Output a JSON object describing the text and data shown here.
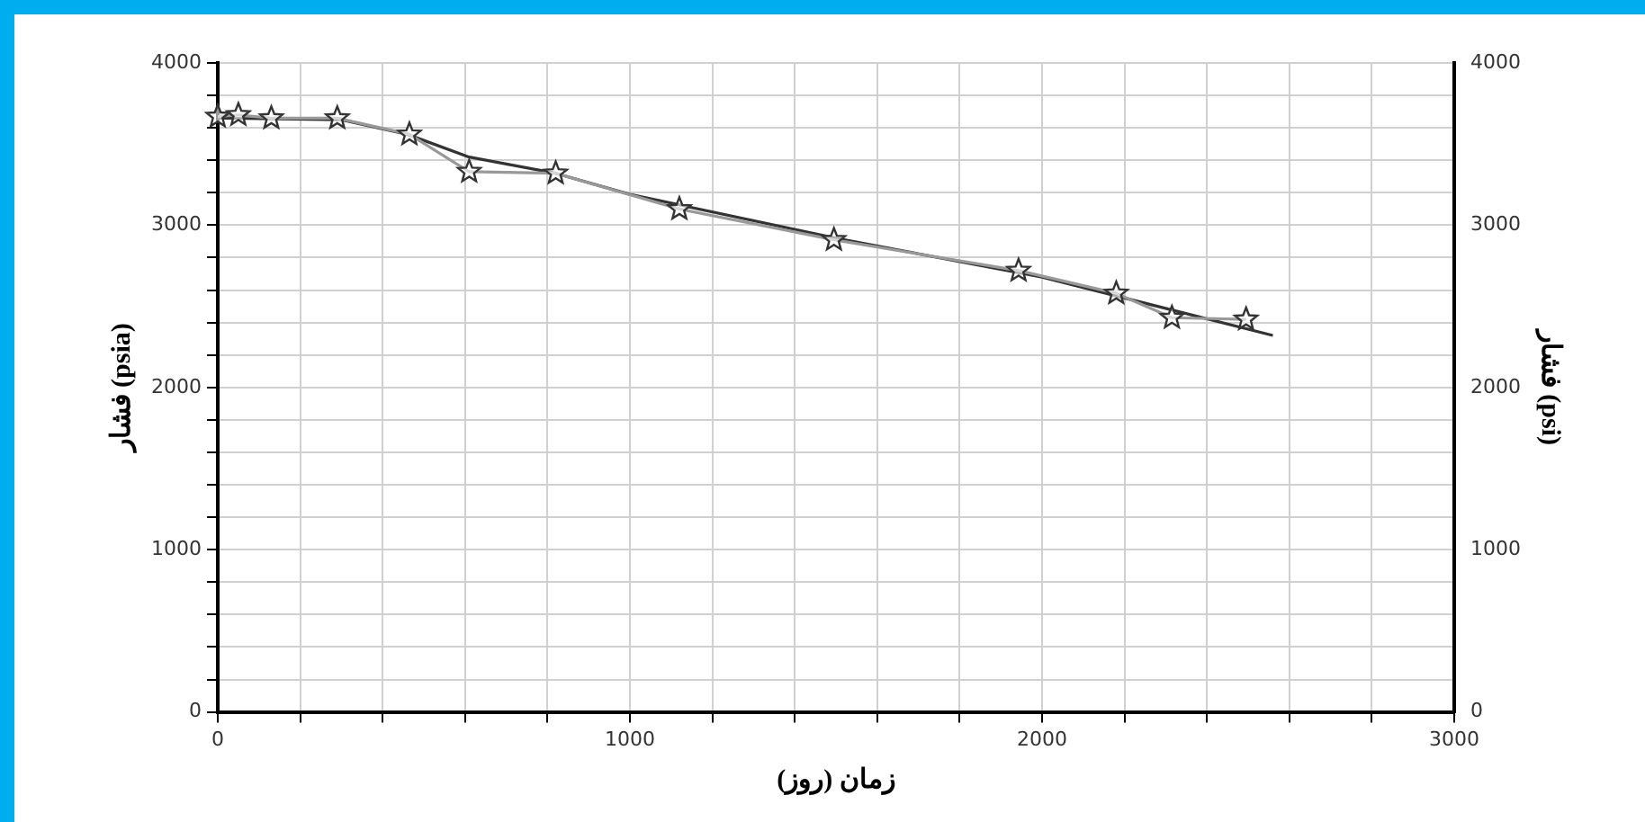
{
  "chart_data": {
    "type": "line",
    "xlabel": "زمان (روز)",
    "ylabel": "فشار (psia)",
    "y2label": "فشار (psi)",
    "xlim": [
      0,
      3000
    ],
    "xticks": [
      0,
      {
        "value": 200,
        "label": null
      },
      {
        "value": 400,
        "label": null
      },
      {
        "value": 600,
        "label": null
      },
      {
        "value": 800,
        "label": null
      },
      1000,
      {
        "value": 1200,
        "label": null
      },
      {
        "value": 1400,
        "label": null
      },
      {
        "value": 1600,
        "label": null
      },
      {
        "value": 1800,
        "label": null
      },
      2000,
      {
        "value": 2200,
        "label": null
      },
      {
        "value": 2400,
        "label": null
      },
      {
        "value": 2600,
        "label": null
      },
      {
        "value": 2800,
        "label": null
      },
      3000
    ],
    "ylim": [
      0,
      4000
    ],
    "yticks": [
      0,
      {
        "value": 200,
        "label": null
      },
      {
        "value": 400,
        "label": null
      },
      {
        "value": 600,
        "label": null
      },
      {
        "value": 800,
        "label": null
      },
      1000,
      {
        "value": 1200,
        "label": null
      },
      {
        "value": 1400,
        "label": null
      },
      {
        "value": 1600,
        "label": null
      },
      {
        "value": 1800,
        "label": null
      },
      2000,
      {
        "value": 2200,
        "label": null
      },
      {
        "value": 2400,
        "label": null
      },
      {
        "value": 2600,
        "label": null
      },
      {
        "value": 2800,
        "label": null
      },
      3000,
      {
        "value": 3200,
        "label": null
      },
      {
        "value": 3400,
        "label": null
      },
      {
        "value": 3600,
        "label": null
      },
      {
        "value": 3800,
        "label": null
      },
      4000
    ],
    "y2lim": [
      0,
      4000
    ],
    "y2ticks": [
      0,
      1000,
      2000,
      3000,
      4000
    ],
    "grid": true,
    "legend": false,
    "series": [
      {
        "color": "#999999",
        "marker": "star",
        "x": [
          0,
          50,
          130,
          290,
          465,
          610,
          820,
          1120,
          1495,
          1943,
          2180,
          2315,
          2495
        ],
        "values": [
          3670,
          3680,
          3660,
          3660,
          3560,
          3330,
          3320,
          3100,
          2910,
          2720,
          2580,
          2430,
          2420
        ]
      },
      {
        "color": "#333333",
        "marker": "none",
        "x": [
          0,
          300,
          460,
          610,
          820,
          1000,
          1500,
          2000,
          2560
        ],
        "values": [
          3660,
          3650,
          3560,
          3420,
          3320,
          3190,
          2920,
          2680,
          2320
        ]
      }
    ]
  }
}
